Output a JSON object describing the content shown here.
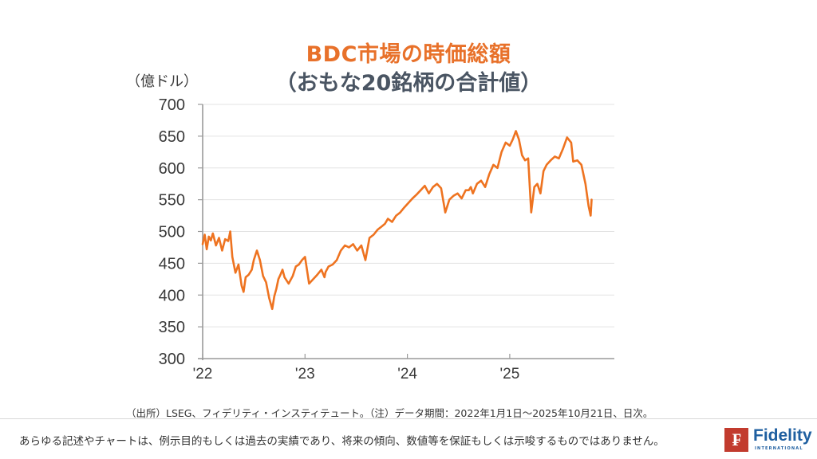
{
  "title": {
    "line1": "BDC市場の時価総額",
    "line2": "（おもな20銘柄の合計値）"
  },
  "unit_label": "（億ドル）",
  "source_note": "（出所）LSEG、フィデリティ・インスティテュート。（注）データ期間：2022年1月1日～2025年10月21日、日次。",
  "disclaimer": "あらゆる記述やチャートは、例示目的もしくは過去の実績であり、将来の傾向、数値等を保証もしくは示唆するものではありません。",
  "logo": {
    "mark": "₣",
    "name": "Fidelity",
    "sub": "INTERNATIONAL"
  },
  "colors": {
    "title_accent": "#e8712a",
    "title_sub": "#4a5563",
    "line": "#ee7320",
    "axis": "#9a9a9a",
    "grid": "#e3e3e3",
    "logo_red": "#c23b2e",
    "logo_blue": "#1f5fa0"
  },
  "chart_data": {
    "type": "line",
    "title": "BDC市場の時価総額（おもな20銘柄の合計値）",
    "xlabel": "",
    "ylabel": "（億ドル）",
    "ylim": [
      300,
      700
    ],
    "yticks": [
      300,
      350,
      400,
      450,
      500,
      550,
      600,
      650,
      700
    ],
    "xticks": [
      "'22",
      "'23",
      "'24",
      "'25"
    ],
    "grid": "horizontal",
    "legend": "none",
    "series": [
      {
        "name": "BDC市場の時価総額",
        "x": [
          2022.0,
          2022.02,
          2022.04,
          2022.06,
          2022.08,
          2022.1,
          2022.13,
          2022.16,
          2022.19,
          2022.22,
          2022.25,
          2022.27,
          2022.29,
          2022.32,
          2022.35,
          2022.38,
          2022.4,
          2022.42,
          2022.45,
          2022.48,
          2022.5,
          2022.53,
          2022.56,
          2022.59,
          2022.62,
          2022.65,
          2022.68,
          2022.7,
          2022.72,
          2022.74,
          2022.76,
          2022.78,
          2022.8,
          2022.84,
          2022.88,
          2022.91,
          2022.94,
          2022.97,
          2023.0,
          2023.04,
          2023.08,
          2023.12,
          2023.16,
          2023.19,
          2023.2,
          2023.23,
          2023.27,
          2023.31,
          2023.35,
          2023.39,
          2023.43,
          2023.47,
          2023.51,
          2023.55,
          2023.59,
          2023.63,
          2023.67,
          2023.71,
          2023.75,
          2023.78,
          2023.81,
          2023.85,
          2023.89,
          2023.93,
          2023.97,
          2024.01,
          2024.05,
          2024.09,
          2024.13,
          2024.17,
          2024.21,
          2024.25,
          2024.29,
          2024.33,
          2024.37,
          2024.41,
          2024.45,
          2024.49,
          2024.53,
          2024.57,
          2024.6,
          2024.62,
          2024.64,
          2024.68,
          2024.72,
          2024.76,
          2024.8,
          2024.84,
          2024.88,
          2024.92,
          2024.96,
          2025.0,
          2025.03,
          2025.06,
          2025.09,
          2025.12,
          2025.15,
          2025.18,
          2025.21,
          2025.24,
          2025.27,
          2025.3,
          2025.33,
          2025.36,
          2025.4,
          2025.44,
          2025.48,
          2025.52,
          2025.56,
          2025.6,
          2025.62,
          2025.66,
          2025.7,
          2025.74,
          2025.77,
          2025.79,
          2025.8
        ],
        "values": [
          480,
          495,
          472,
          492,
          486,
          497,
          478,
          490,
          470,
          488,
          485,
          500,
          460,
          435,
          448,
          415,
          405,
          428,
          432,
          440,
          455,
          470,
          455,
          430,
          420,
          395,
          378,
          398,
          410,
          425,
          432,
          440,
          428,
          418,
          430,
          445,
          448,
          455,
          460,
          418,
          425,
          432,
          440,
          428,
          436,
          445,
          448,
          455,
          470,
          478,
          475,
          480,
          470,
          478,
          455,
          490,
          495,
          503,
          508,
          512,
          520,
          515,
          525,
          530,
          538,
          545,
          552,
          558,
          565,
          572,
          560,
          570,
          575,
          568,
          530,
          550,
          556,
          560,
          552,
          565,
          565,
          570,
          560,
          575,
          580,
          570,
          590,
          605,
          600,
          625,
          640,
          635,
          645,
          658,
          645,
          620,
          612,
          615,
          530,
          570,
          575,
          560,
          595,
          605,
          612,
          618,
          615,
          630,
          648,
          640,
          610,
          612,
          605,
          575,
          540,
          525,
          550
        ]
      }
    ]
  }
}
